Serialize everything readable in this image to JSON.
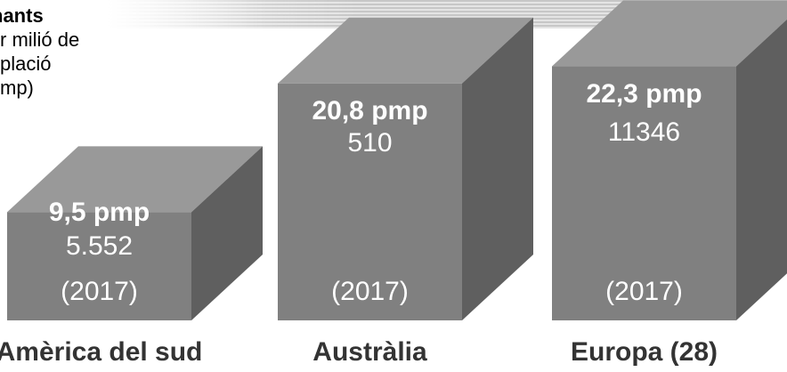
{
  "legend": {
    "title": "nants",
    "line1": "r milió de",
    "line2": "plació",
    "line3": "mp)"
  },
  "colors": {
    "front": "#808080",
    "top": "#999999",
    "side": "#5f5f5f",
    "text": "#ffffff",
    "label": "#333333"
  },
  "chart_data": {
    "type": "bar",
    "title": "",
    "xlabel": "",
    "ylabel": "",
    "categories": [
      "Amèrica del sud",
      "Austràlia",
      "Europa (28)"
    ],
    "series": [
      {
        "values": [
          9.5,
          20.8,
          22.3
        ]
      }
    ],
    "value_labels": [
      "9,5 pmp",
      "20,8 pmp",
      "22,3 pmp"
    ],
    "count_labels": [
      "5.552",
      "510",
      "11346"
    ],
    "year_labels": [
      "(2017)",
      "(2017)",
      "(2017)"
    ]
  }
}
